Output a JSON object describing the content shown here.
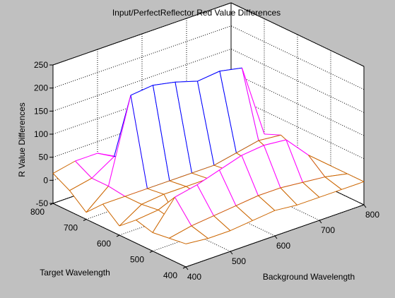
{
  "chart_data": {
    "type": "surface",
    "title": "Input/PerfectReflector Red Value Differences",
    "xlabel": "Background Wavelength",
    "ylabel": "Target Wavelength",
    "zlabel": "R Value Differences",
    "xlim": [
      400,
      800
    ],
    "ylim": [
      400,
      800
    ],
    "zlim": [
      -50,
      250
    ],
    "xticks": [
      "400",
      "500",
      "600",
      "700",
      "800"
    ],
    "yticks": [
      "400",
      "500",
      "600",
      "700",
      "800"
    ],
    "zticks": [
      "-50",
      "0",
      "50",
      "100",
      "150",
      "200",
      "250"
    ],
    "grid": true,
    "background_color": "#c0c0c0",
    "axes_color": "#ffffff",
    "x": [
      400,
      450,
      500,
      550,
      600,
      650,
      700,
      750,
      800
    ],
    "y": [
      400,
      450,
      500,
      550,
      600,
      650,
      700,
      750,
      800
    ],
    "z": [
      [
        0,
        -5,
        -5,
        0,
        5,
        0,
        0,
        0,
        0
      ],
      [
        -5,
        5,
        10,
        15,
        20,
        20,
        15,
        10,
        0
      ],
      [
        -10,
        50,
        60,
        75,
        90,
        95,
        90,
        40,
        0
      ],
      [
        0,
        5,
        -45,
        0,
        5,
        5,
        5,
        0,
        0
      ],
      [
        -30,
        0,
        5,
        5,
        5,
        5,
        5,
        5,
        0
      ],
      [
        0,
        0,
        0,
        0,
        0,
        0,
        10,
        20,
        15
      ],
      [
        -35,
        5,
        185,
        190,
        180,
        165,
        170,
        160,
        0
      ],
      [
        -5,
        5,
        35,
        30,
        20,
        10,
        10,
        10,
        0
      ],
      [
        15,
        25,
        25,
        0,
        0,
        0,
        0,
        0,
        0
      ]
    ],
    "line_colors": [
      "#ff0000",
      "#0000ff",
      "#00cc00",
      "#ff00ff",
      "#ffff00",
      "#cc6600"
    ]
  }
}
